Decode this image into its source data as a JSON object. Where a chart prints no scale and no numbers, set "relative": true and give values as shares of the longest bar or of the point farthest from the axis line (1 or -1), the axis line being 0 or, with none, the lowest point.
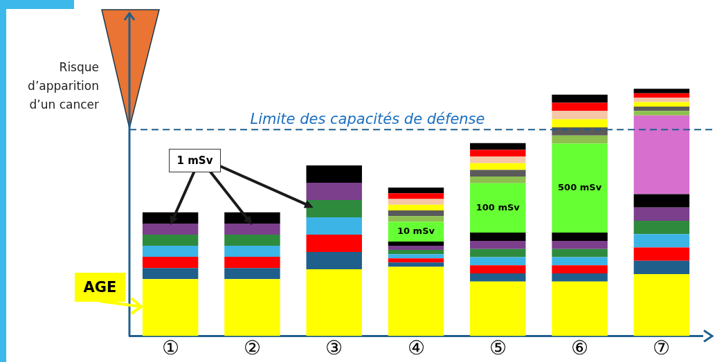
{
  "chart_data": {
    "type": "bar",
    "stacked": true,
    "relative": true,
    "tick_labels": "x",
    "legend": false,
    "grid": false,
    "ylabel": "Risque d’apparition d’un cancer",
    "categories": [
      "①",
      "②",
      "③",
      "④",
      "⑤",
      "⑥",
      "⑦"
    ],
    "series": [
      {
        "color": "#ffff00",
        "values": [
          0.23,
          0.23,
          0.27,
          0.28,
          0.22,
          0.22,
          0.25
        ]
      },
      {
        "color": "#1f5f8b",
        "values": [
          0.045,
          0.045,
          0.07,
          0.017,
          0.033,
          0.033,
          0.054
        ]
      },
      {
        "color": "#ff0000",
        "values": [
          0.045,
          0.045,
          0.07,
          0.017,
          0.033,
          0.033,
          0.054
        ]
      },
      {
        "color": "#3cb4e6",
        "values": [
          0.045,
          0.045,
          0.07,
          0.017,
          0.033,
          0.033,
          0.054
        ]
      },
      {
        "color": "#2e8b3e",
        "values": [
          0.045,
          0.045,
          0.07,
          0.017,
          0.033,
          0.033,
          0.054
        ]
      },
      {
        "color": "#7b3f8c",
        "values": [
          0.045,
          0.045,
          0.07,
          0.017,
          0.033,
          0.033,
          0.054
        ]
      },
      {
        "color": "#000000",
        "values": [
          0.045,
          0.045,
          0.07,
          0.017,
          0.033,
          0.033,
          0.054
        ]
      },
      {
        "colors": [
          "#66ff33",
          "#66ff33",
          "#66ff33",
          "#66ff33",
          "#66ff33",
          "#66ff33",
          "#d76fcf"
        ],
        "values": [
          null,
          null,
          null,
          0.08,
          0.2,
          0.36,
          0.318
        ]
      },
      {
        "color": "#8fbf4f",
        "values": [
          null,
          null,
          null,
          0.023,
          0.027,
          0.033,
          0.018
        ]
      },
      {
        "color": "#5a5a5a",
        "values": [
          null,
          null,
          null,
          0.023,
          0.027,
          0.033,
          0.018
        ]
      },
      {
        "color": "#ffff00",
        "values": [
          null,
          null,
          null,
          0.023,
          0.027,
          0.033,
          0.018
        ]
      },
      {
        "color": "#f5c6a8",
        "values": [
          null,
          null,
          null,
          0.023,
          0.027,
          0.033,
          0.018
        ]
      },
      {
        "color": "#ff0000",
        "values": [
          null,
          null,
          null,
          0.023,
          0.027,
          0.033,
          0.018
        ]
      },
      {
        "color": "#000000",
        "values": [
          null,
          null,
          null,
          0.023,
          0.027,
          0.033,
          0.018
        ]
      }
    ],
    "ref_lines": [
      {
        "axis": "y",
        "value": 0.835,
        "label": "Limite des capacités de défense",
        "color": "#1f5f8b",
        "line_style": "dashed"
      }
    ],
    "annotations": [
      "1 mSv",
      "AGE",
      "10 mSv",
      "100 mSv",
      "500 mSv"
    ]
  }
}
